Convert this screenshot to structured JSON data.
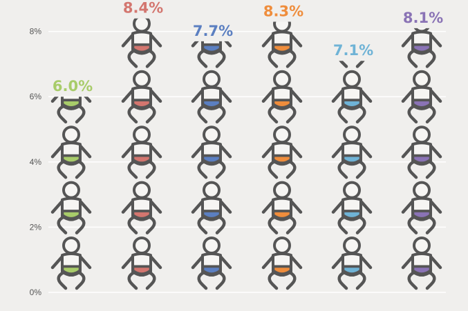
{
  "chart_data": {
    "type": "bar",
    "title": "",
    "xlabel": "",
    "ylabel": "",
    "ylim": [
      0,
      8.5
    ],
    "y_ticks": [
      {
        "value": 0,
        "label": "0%"
      },
      {
        "value": 2,
        "label": "2%"
      },
      {
        "value": 4,
        "label": "4%"
      },
      {
        "value": 6,
        "label": "6%"
      },
      {
        "value": 8,
        "label": "8%"
      }
    ],
    "grid": true,
    "units_per_icon": 1.7,
    "categories": [
      "",
      "",
      "",
      "",
      "",
      ""
    ],
    "values": [
      6.0,
      8.4,
      7.7,
      8.3,
      7.1,
      8.1
    ],
    "value_labels": [
      "6.0%",
      "8.4%",
      "7.7%",
      "8.3%",
      "7.1%",
      "8.1%"
    ],
    "colors": [
      "#a8cc6a",
      "#d3766f",
      "#5b7fc1",
      "#ef8d3c",
      "#6fb3d6",
      "#8a73b5"
    ],
    "icon": "baby-icon",
    "icon_outline_color": "#555555"
  }
}
